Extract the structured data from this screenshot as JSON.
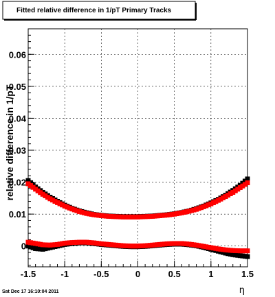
{
  "chart_data": {
    "type": "scatter",
    "title": "Fitted relative difference in 1/pT  Primary Tracks",
    "xlabel": "η",
    "ylabel": "relative difference in 1/pT",
    "xlim": [
      -1.5,
      1.5
    ],
    "ylim": [
      -0.0065,
      0.068
    ],
    "x_ticks": [
      -1.5,
      -1,
      -0.5,
      0,
      0.5,
      1,
      1.5
    ],
    "x_tick_labels": [
      "-1.5",
      "-1",
      "-0.5",
      "0",
      "0.5",
      "1",
      "1.5"
    ],
    "y_ticks": [
      0,
      0.01,
      0.02,
      0.03,
      0.04,
      0.05,
      0.06
    ],
    "y_tick_labels": [
      "0",
      "0.01",
      "0.02",
      "0.03",
      "0.04",
      "0.05",
      "0.06"
    ],
    "grid": true,
    "legend": false,
    "timestamp": "Sat Dec 17 16:10:04 2011",
    "series": [
      {
        "color": "#000000",
        "marker": "square",
        "x": [
          -1.5,
          -1.4,
          -1.3,
          -1.2,
          -1.1,
          -1.0,
          -0.9,
          -0.8,
          -0.7,
          -0.6,
          -0.5,
          -0.4,
          -0.3,
          -0.2,
          -0.1,
          0.0,
          0.1,
          0.2,
          0.3,
          0.4,
          0.5,
          0.6,
          0.7,
          0.8,
          0.9,
          1.0,
          1.1,
          1.2,
          1.3,
          1.4,
          1.5
        ],
        "values": [
          0.0205,
          0.0185,
          0.0168,
          0.0153,
          0.014,
          0.0128,
          0.0118,
          0.011,
          0.0104,
          0.0099,
          0.0096,
          0.0094,
          0.0093,
          0.0092,
          0.0092,
          0.0092,
          0.0093,
          0.0094,
          0.0096,
          0.0098,
          0.0101,
          0.0105,
          0.011,
          0.0117,
          0.0125,
          0.0135,
          0.0146,
          0.0159,
          0.0174,
          0.019,
          0.021
        ]
      },
      {
        "color": "#ff0000",
        "marker": "square",
        "x": [
          -1.5,
          -1.4,
          -1.3,
          -1.2,
          -1.1,
          -1.0,
          -0.9,
          -0.8,
          -0.7,
          -0.6,
          -0.5,
          -0.4,
          -0.3,
          -0.2,
          -0.1,
          0.0,
          0.1,
          0.2,
          0.3,
          0.4,
          0.5,
          0.6,
          0.7,
          0.8,
          0.9,
          1.0,
          1.1,
          1.2,
          1.3,
          1.4,
          1.5
        ],
        "values": [
          0.0195,
          0.0178,
          0.0162,
          0.0148,
          0.0136,
          0.0125,
          0.0116,
          0.0108,
          0.0102,
          0.0098,
          0.0095,
          0.0093,
          0.0092,
          0.0091,
          0.0091,
          0.0091,
          0.0092,
          0.0093,
          0.0095,
          0.0097,
          0.01,
          0.0104,
          0.0109,
          0.0115,
          0.0123,
          0.0132,
          0.0143,
          0.0155,
          0.0168,
          0.0183,
          0.0198
        ]
      },
      {
        "color": "#000000",
        "marker": "square",
        "x": [
          -1.5,
          -1.4,
          -1.3,
          -1.2,
          -1.1,
          -1.0,
          -0.9,
          -0.8,
          -0.7,
          -0.6,
          -0.5,
          -0.4,
          -0.3,
          -0.2,
          -0.1,
          0.0,
          0.1,
          0.2,
          0.3,
          0.4,
          0.5,
          0.6,
          0.7,
          0.8,
          0.9,
          1.0,
          1.1,
          1.2,
          1.3,
          1.4,
          1.5
        ],
        "values": [
          0.0,
          -0.0008,
          -0.001,
          -0.0005,
          0.0,
          0.0005,
          0.0008,
          0.001,
          0.001,
          0.0008,
          0.0005,
          0.0003,
          0.0001,
          -0.0001,
          -0.0002,
          -0.0002,
          -0.0001,
          0.0001,
          0.0003,
          0.0005,
          0.0006,
          0.0006,
          0.0004,
          0.0001,
          -0.0004,
          -0.001,
          -0.0016,
          -0.0022,
          -0.0027,
          -0.003,
          -0.0033
        ]
      },
      {
        "color": "#ff0000",
        "marker": "square",
        "x": [
          -1.5,
          -1.4,
          -1.3,
          -1.2,
          -1.1,
          -1.0,
          -0.9,
          -0.8,
          -0.7,
          -0.6,
          -0.5,
          -0.4,
          -0.3,
          -0.2,
          -0.1,
          0.0,
          0.1,
          0.2,
          0.3,
          0.4,
          0.5,
          0.6,
          0.7,
          0.8,
          0.9,
          1.0,
          1.1,
          1.2,
          1.3,
          1.4,
          1.5
        ],
        "values": [
          0.0012,
          0.0008,
          0.0004,
          0.0003,
          0.0005,
          0.0009,
          0.0011,
          0.0012,
          0.0012,
          0.001,
          0.0007,
          0.0005,
          0.0003,
          0.0001,
          0.0,
          0.0,
          0.0001,
          0.0003,
          0.0005,
          0.0007,
          0.0008,
          0.0008,
          0.0006,
          0.0003,
          -0.0001,
          -0.0005,
          -0.0009,
          -0.0012,
          -0.0014,
          -0.0015,
          -0.0015
        ]
      }
    ]
  }
}
